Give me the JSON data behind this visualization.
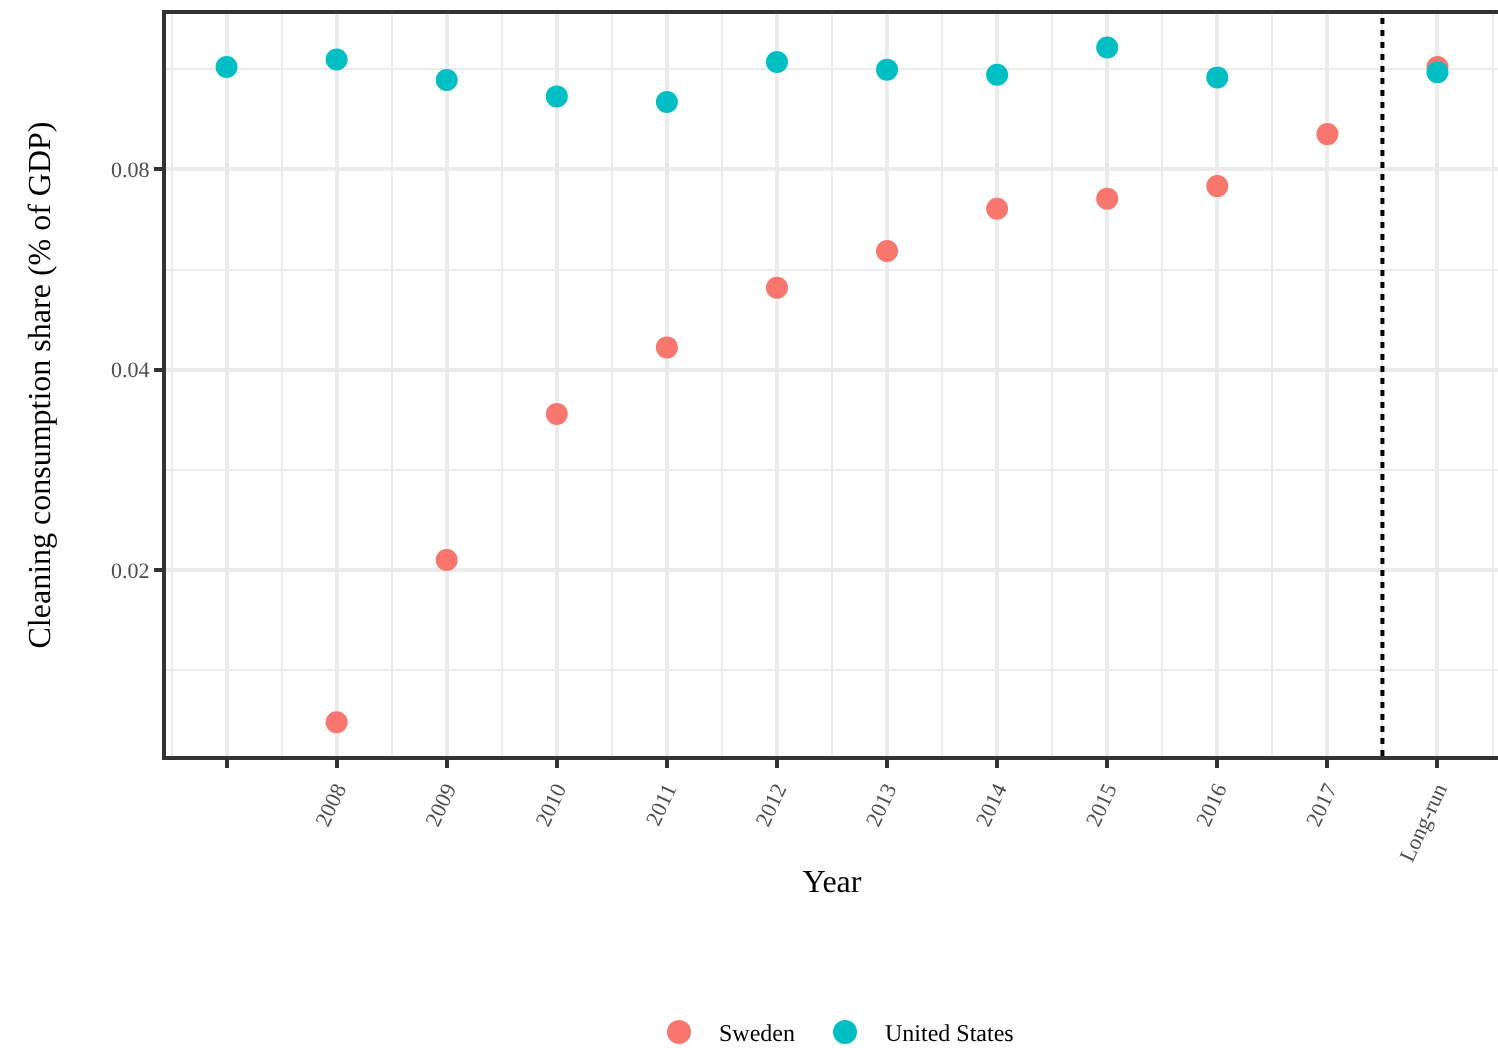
{
  "chart_data": {
    "type": "scatter",
    "xlabel": "Year",
    "ylabel": "Cleaning consumption share (% of GDP)",
    "x": [
      2007,
      2008,
      2009,
      2010,
      2011,
      2012,
      2013,
      2014,
      2015,
      2016,
      2017,
      2018
    ],
    "series": [
      {
        "name": "Sweden",
        "color": "#f8766d",
        "values": [
          null,
          0.0118,
          0.0207,
          0.0343,
          0.0432,
          0.0531,
          0.0603,
          0.0698,
          0.0723,
          0.0755,
          0.0904,
          0.114
        ]
      },
      {
        "name": "United States",
        "color": "#00bfc4",
        "values": [
          0.114,
          0.117,
          0.109,
          0.103,
          0.101,
          0.116,
          0.113,
          0.111,
          0.122,
          0.11,
          null,
          0.112
        ]
      }
    ],
    "xlim": [
      2006.45,
      2018.55
    ],
    "xticks": [
      {
        "value": 2007,
        "label": null
      },
      2008,
      2009,
      2010,
      2011,
      2012,
      2013,
      2014,
      2015,
      2016,
      2017,
      {
        "value": 2018,
        "label": "Long-run"
      }
    ],
    "ylim": [
      0.0105,
      0.137
    ],
    "yticks": [
      0.02,
      0.04,
      0.08
    ],
    "log": "y",
    "grid": true,
    "legend": "bottom",
    "marker": "circle",
    "ref_lines": [
      {
        "axis": "x",
        "value": 2017.5,
        "color": "#000000",
        "line_style": "dotted"
      }
    ]
  }
}
